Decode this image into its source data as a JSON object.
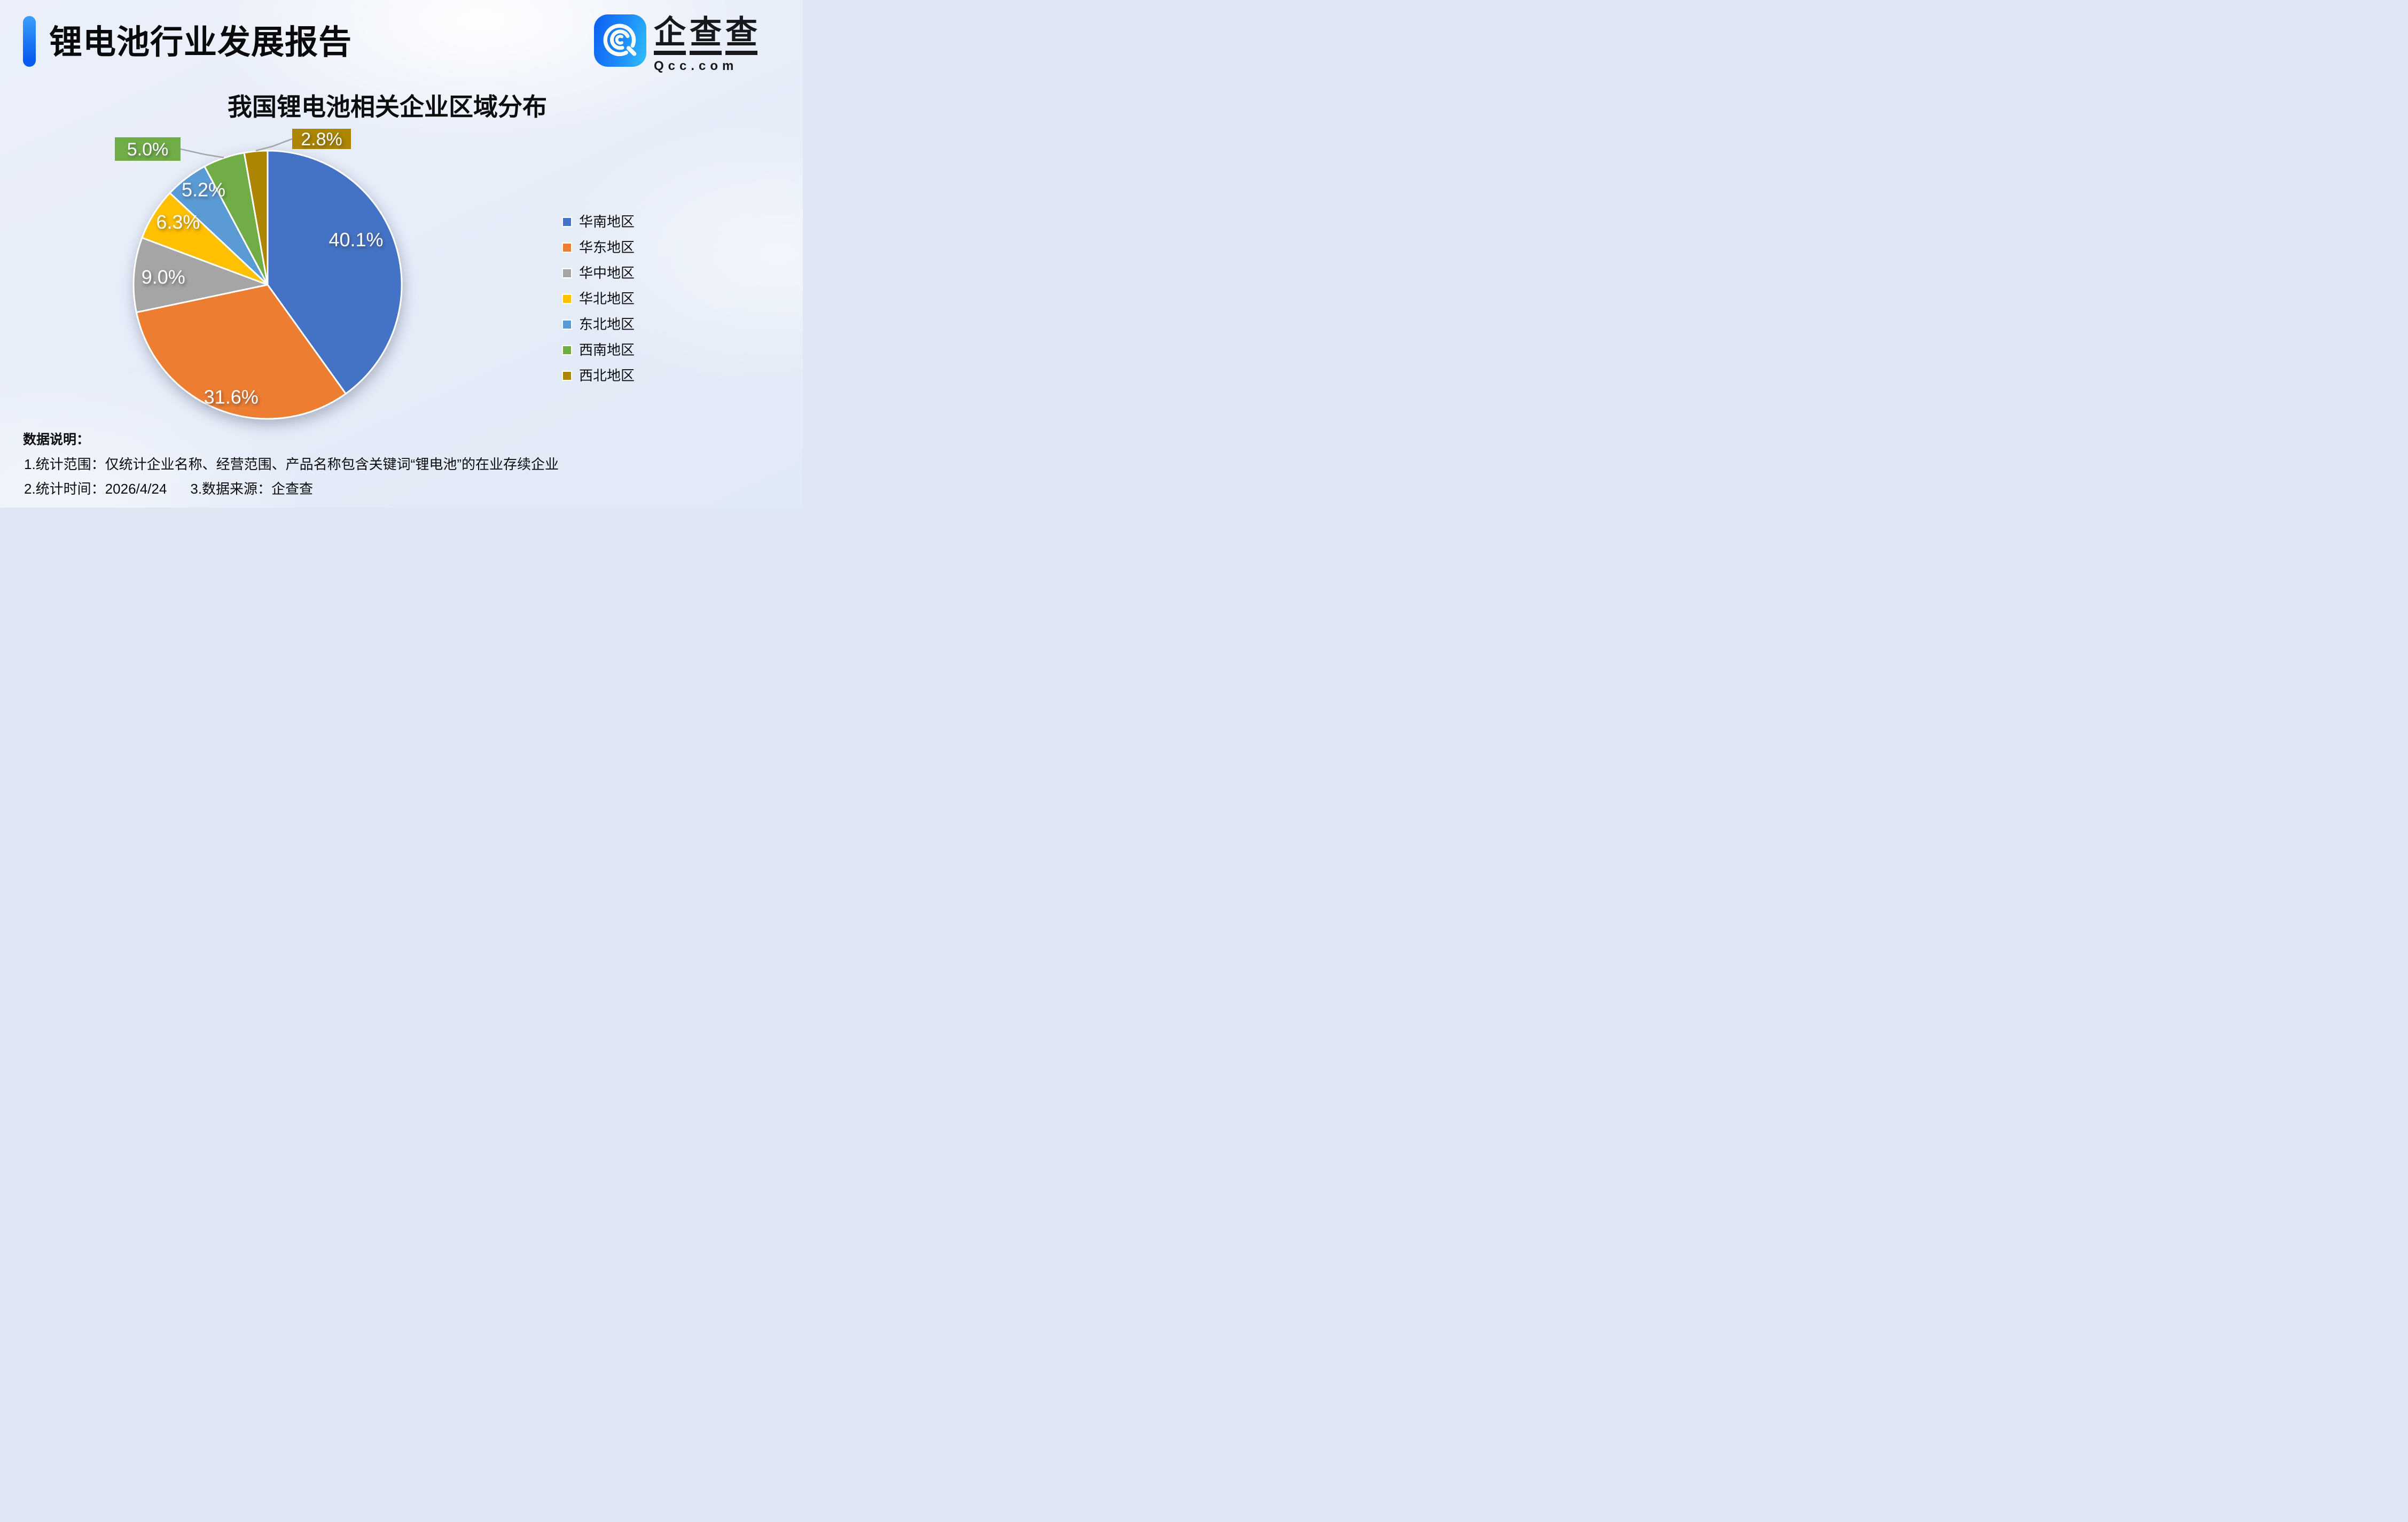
{
  "page": {
    "title": "锂电池行业发展报告"
  },
  "logo": {
    "icon": "qcc-magnifier-icon",
    "chars": [
      "企",
      "查",
      "查"
    ],
    "domain": "Qcc.com",
    "brand_blue": "#1273F2"
  },
  "chart_data": {
    "type": "pie",
    "title": "我国锂电池相关企业区域分布",
    "start_angle_deg": 0,
    "direction": "clockwise",
    "legend_position": "right",
    "unit": "percent",
    "leader_line_color": "#A6A6A6",
    "series": [
      {
        "name": "华南地区",
        "value": 40.1,
        "display": "40.1%",
        "color": "#4472C4",
        "label": {
          "type": "inside",
          "angle": 63,
          "r": 0.74
        }
      },
      {
        "name": "华东地区",
        "value": 31.6,
        "display": "31.6%",
        "color": "#ED7D31",
        "label": {
          "type": "inside",
          "angle": 198,
          "r": 0.88
        }
      },
      {
        "name": "华中地区",
        "value": 9.0,
        "display": "9.0%",
        "color": "#A5A5A5",
        "label": {
          "type": "inside",
          "angle": 274.3,
          "r": 0.78
        }
      },
      {
        "name": "华北地区",
        "value": 6.3,
        "display": "6.3%",
        "color": "#FFC000",
        "label": {
          "type": "inside",
          "angle": 305,
          "r": 0.815
        }
      },
      {
        "name": "东北地区",
        "value": 5.2,
        "display": "5.2%",
        "color": "#5B9BD5",
        "label": {
          "type": "inside",
          "angle": 326,
          "r": 0.855
        }
      },
      {
        "name": "西南地区",
        "value": 5.0,
        "display": "5.0%",
        "color": "#70AD47",
        "label": {
          "type": "callout",
          "box": [
            215,
            257,
            123,
            44
          ],
          "anchor_angle": 341,
          "side": "right"
        }
      },
      {
        "name": "西北地区",
        "value": 2.8,
        "display": "2.8%",
        "color": "#AC8600",
        "label": {
          "type": "callout",
          "box": [
            547,
            241,
            110,
            38
          ],
          "anchor_angle": 355,
          "side": "left"
        }
      }
    ]
  },
  "notes": {
    "heading": "数据说明：",
    "line1": "1.统计范围：仅统计企业名称、经营范围、产品名称包含关键词“锂电池”的在业存续企业",
    "line2_time": "2.统计时间：2026/4/24",
    "line2_source": "3.数据来源：企查查"
  }
}
